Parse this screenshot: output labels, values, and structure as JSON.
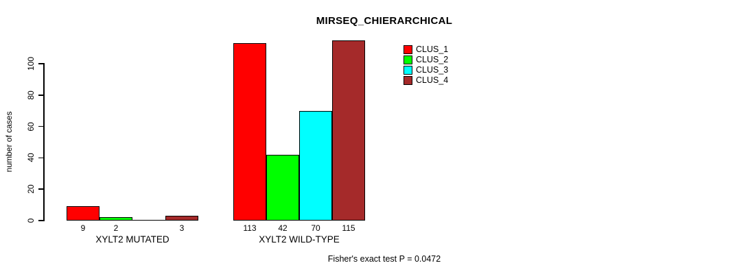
{
  "chart_data": {
    "type": "bar",
    "title": "MIRSEQ_CHIERARCHICAL",
    "ylabel": "number of cases",
    "ylim": [
      0,
      100
    ],
    "yticks": [
      0,
      20,
      40,
      60,
      80,
      100
    ],
    "grid": false,
    "legend_position": "top-right",
    "series": [
      "CLUS_1",
      "CLUS_2",
      "CLUS_3",
      "CLUS_4"
    ],
    "colors": [
      "#FF0000",
      "#00FF00",
      "#00FFFF",
      "#A52A2A"
    ],
    "groups": [
      {
        "label": "XYLT2 MUTATED",
        "values": [
          9,
          2,
          0,
          3
        ],
        "bar_labels": [
          "9",
          "2",
          "",
          "3"
        ]
      },
      {
        "label": "XYLT2 WILD-TYPE",
        "values": [
          113,
          42,
          70,
          115
        ],
        "bar_labels": [
          "113",
          "42",
          "70",
          "115"
        ]
      }
    ],
    "annotation": "Fisher's exact test P = 0.0472"
  }
}
